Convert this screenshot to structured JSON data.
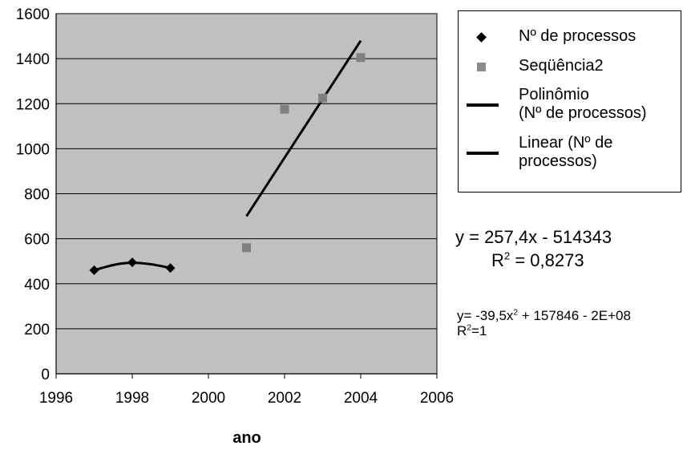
{
  "chart_data": {
    "type": "scatter",
    "xlabel": "ano",
    "ylabel": "",
    "xlim": [
      1996,
      2006
    ],
    "ylim": [
      0,
      1600
    ],
    "x_ticks": [
      "1996",
      "1998",
      "2000",
      "2002",
      "2004",
      "2006"
    ],
    "y_ticks": [
      "0",
      "200",
      "400",
      "600",
      "800",
      "1000",
      "1200",
      "1400",
      "1600"
    ],
    "grid": true,
    "plot_background": "#c0c0c0",
    "legend_position": "right",
    "series": [
      {
        "name": "Nº de processos",
        "marker": "diamond",
        "color": "#000000",
        "x": [
          1997,
          1998,
          1999
        ],
        "y": [
          460,
          495,
          470
        ]
      },
      {
        "name": "Seqüência2",
        "marker": "square",
        "color": "#808080",
        "x": [
          2001,
          2002,
          2003,
          2004
        ],
        "y": [
          560,
          1175,
          1225,
          1405
        ]
      }
    ],
    "trendlines": [
      {
        "name": "Polinômio (Nº de processos)",
        "kind": "polynomial",
        "x": [
          1997,
          1997.5,
          1998,
          1998.5,
          1999
        ],
        "y": [
          460,
          486,
          495,
          488,
          470
        ]
      },
      {
        "name": "Linear (Nº de processos)",
        "kind": "linear",
        "x": [
          2001,
          2004
        ],
        "y": [
          700,
          1480
        ]
      }
    ],
    "legend": [
      {
        "symbol": "diamond",
        "lines": [
          "Nº de processos"
        ]
      },
      {
        "symbol": "square",
        "lines": [
          "Seqüência2"
        ]
      },
      {
        "symbol": "line",
        "lines": [
          "Polinômio",
          "(Nº de processos)"
        ]
      },
      {
        "symbol": "line",
        "lines": [
          "Linear (Nº de",
          "processos)"
        ]
      }
    ],
    "annotations": {
      "linear_eq": "y = 257,4x - 514343",
      "linear_r2_prefix": "R",
      "linear_r2_sup": "2",
      "linear_r2_value": " = 0,8273",
      "poly_eq_prefix": "y= -39,5x",
      "poly_eq_sup": "2",
      "poly_eq_rest": " + 157846 - 2E+08",
      "poly_r2_prefix": "R",
      "poly_r2_sup": "2",
      "poly_r2_value": "=1"
    }
  }
}
